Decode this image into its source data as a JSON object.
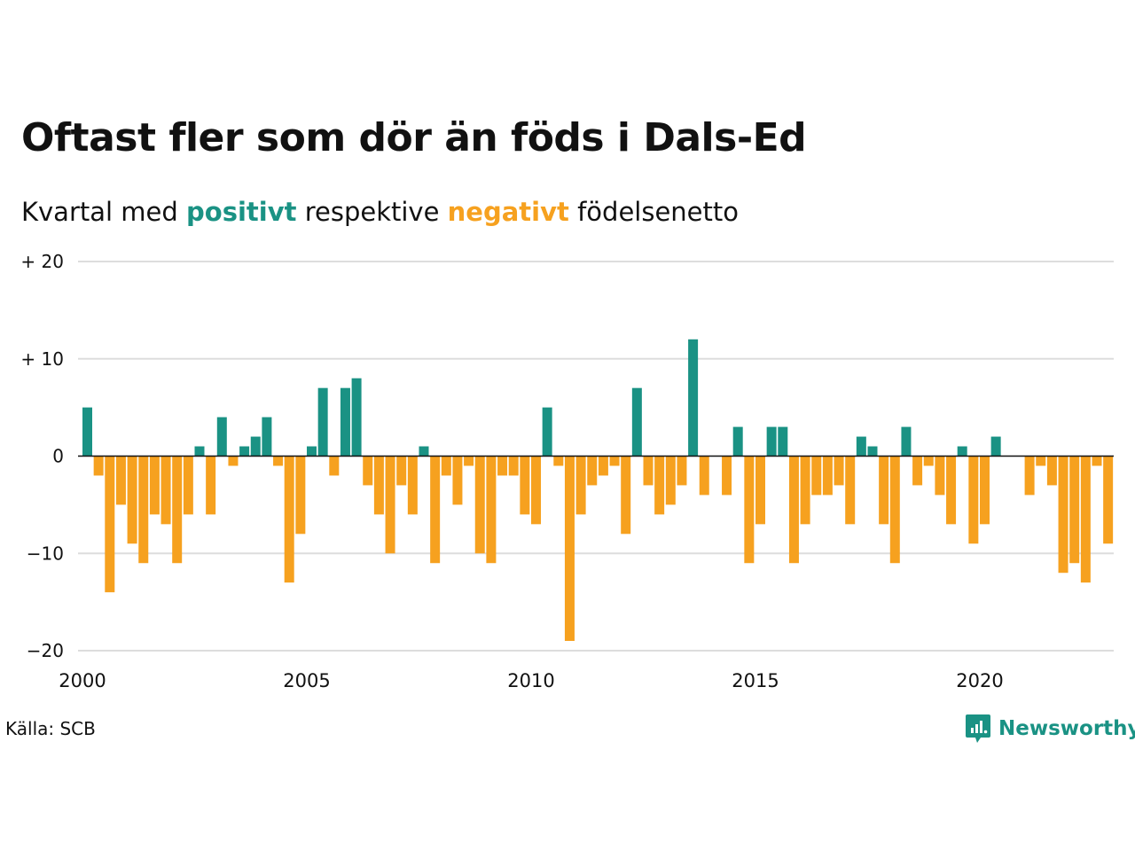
{
  "title": "Oftast fler som dör än föds i Dals-Ed",
  "subtitle": {
    "prefix": "Kvartal med ",
    "positive": "positivt",
    "middle": " respektive ",
    "negative": "negativt",
    "suffix": " födelsenetto"
  },
  "source": "Källa: SCB",
  "brand": "Newsworthy",
  "colors": {
    "positive": "#1a9284",
    "negative": "#f6a11f",
    "grid": "#dddddd",
    "axis": "#111111"
  },
  "chart_data": {
    "type": "bar",
    "ylim": [
      -20,
      20
    ],
    "y_ticks": [
      {
        "value": 20,
        "label": "+ 20"
      },
      {
        "value": 10,
        "label": "+ 10"
      },
      {
        "value": 0,
        "label": "0"
      },
      {
        "value": -10,
        "label": "−10"
      },
      {
        "value": -20,
        "label": "−20"
      }
    ],
    "x_ticks": [
      "2000",
      "2005",
      "2010",
      "2015",
      "2020"
    ],
    "first_year": 2000,
    "last_year": 2022,
    "quarters_per_year": 4,
    "values": [
      5,
      -2,
      -14,
      -5,
      -9,
      -11,
      -6,
      -7,
      -11,
      -6,
      1,
      -6,
      4,
      -1,
      1,
      2,
      4,
      -1,
      -13,
      -8,
      1,
      7,
      -2,
      7,
      8,
      -3,
      -6,
      -10,
      -3,
      -6,
      1,
      -11,
      -2,
      -5,
      -1,
      -10,
      -11,
      -2,
      -2,
      -6,
      -7,
      5,
      -1,
      -19,
      -6,
      -3,
      -2,
      -1,
      -8,
      7,
      -3,
      -6,
      -5,
      -3,
      12,
      -4,
      0,
      -4,
      3,
      -11,
      -7,
      3,
      3,
      -11,
      -7,
      -4,
      -4,
      -3,
      -7,
      2,
      1,
      -7,
      -11,
      3,
      -3,
      -1,
      -4,
      -7,
      1,
      -9,
      -7,
      2,
      0,
      0,
      -4,
      -1,
      -3,
      -12,
      -11,
      -13,
      -1,
      -9
    ]
  }
}
